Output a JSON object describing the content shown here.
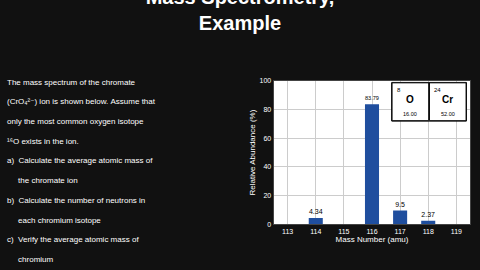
{
  "chart_data": {
    "type": "bar",
    "title": "Mass Spectrometry,\nExample",
    "x": [
      114,
      116,
      117,
      118
    ],
    "values": [
      4.34,
      83.79,
      9.5,
      2.37
    ],
    "data_labels": true,
    "color": "#1f4e9e",
    "xlabel": "Mass Number (amu)",
    "ylabel": "Relative Abundance (%)",
    "xlim": [
      112.5,
      119.5
    ],
    "ylim": [
      0,
      100
    ],
    "xticks": [
      113,
      114,
      115,
      116,
      117,
      118,
      119
    ],
    "yticks": [
      0,
      20,
      40,
      60,
      80,
      100
    ],
    "grid": true,
    "annotations": [
      "The mass spectrum of the chromate",
      "(CrO₄²⁻) ion is shown below. Assume that",
      "only the most common oxygen isotope",
      "¹⁶O exists in the ion.",
      "a)  Calculate the average atomic mass of",
      "     the chromate ion",
      "b)  Calculate the number of neutrons in",
      "     each chromium isotope",
      "c)  Verify the average atomic mass of",
      "     chromium"
    ],
    "element_tiles": [
      {
        "symbol": "O",
        "mass_number": "8",
        "mass": "16.00"
      },
      {
        "symbol": "Cr",
        "mass_number": "24",
        "mass": "52.00"
      }
    ]
  }
}
